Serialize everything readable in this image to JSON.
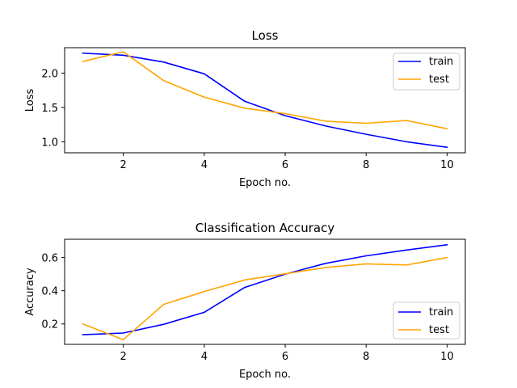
{
  "chart_data": [
    {
      "type": "line",
      "title": "Loss",
      "xlabel": "Epoch no.",
      "ylabel": "Loss",
      "x": [
        1,
        2,
        3,
        4,
        5,
        6,
        7,
        8,
        9,
        10
      ],
      "xlim": [
        0.55,
        10.45
      ],
      "ylim": [
        0.84,
        2.37
      ],
      "xticks": [
        2,
        4,
        6,
        8,
        10
      ],
      "xtick_labels": [
        "2",
        "4",
        "6",
        "8",
        "10"
      ],
      "yticks": [
        1.0,
        1.5,
        2.0
      ],
      "ytick_labels": [
        "1.0",
        "1.5",
        "2.0"
      ],
      "grid": false,
      "legend_position": "top-right",
      "series": [
        {
          "name": "train",
          "color": "#0000ff",
          "values": [
            2.29,
            2.26,
            2.16,
            1.99,
            1.59,
            1.38,
            1.23,
            1.11,
            1.0,
            0.92
          ]
        },
        {
          "name": "test",
          "color": "#ffa500",
          "values": [
            2.17,
            2.31,
            1.89,
            1.65,
            1.49,
            1.41,
            1.3,
            1.27,
            1.31,
            1.19
          ]
        }
      ]
    },
    {
      "type": "line",
      "title": "Classification Accuracy",
      "xlabel": "Epoch no.",
      "ylabel": "Accuracy",
      "x": [
        1,
        2,
        3,
        4,
        5,
        6,
        7,
        8,
        9,
        10
      ],
      "xlim": [
        0.55,
        10.45
      ],
      "ylim": [
        0.077,
        0.71
      ],
      "xticks": [
        2,
        4,
        6,
        8,
        10
      ],
      "xtick_labels": [
        "2",
        "4",
        "6",
        "8",
        "10"
      ],
      "yticks": [
        0.2,
        0.4,
        0.6
      ],
      "ytick_labels": [
        "0.2",
        "0.4",
        "0.6"
      ],
      "grid": false,
      "legend_position": "bottom-right",
      "series": [
        {
          "name": "train",
          "color": "#0000ff",
          "values": [
            0.135,
            0.145,
            0.198,
            0.27,
            0.42,
            0.5,
            0.565,
            0.61,
            0.645,
            0.677
          ]
        },
        {
          "name": "test",
          "color": "#ffa500",
          "values": [
            0.2,
            0.105,
            0.318,
            0.395,
            0.465,
            0.502,
            0.54,
            0.562,
            0.555,
            0.6
          ]
        }
      ]
    }
  ]
}
